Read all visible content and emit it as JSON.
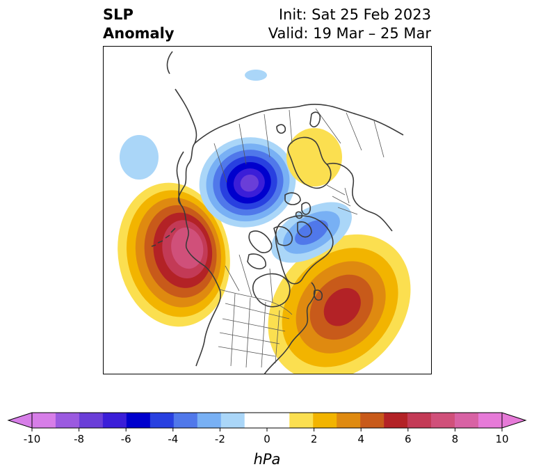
{
  "title": {
    "left_line1": "SLP",
    "left_line2": "Anomaly",
    "init": "Init: Sat 25 Feb 2023",
    "valid": "Valid: 19 Mar – 25 Mar"
  },
  "colorbar": {
    "unit": "hPa",
    "ticks": [
      "-10",
      "-8",
      "-6",
      "-4",
      "-2",
      "0",
      "2",
      "4",
      "6",
      "8",
      "10"
    ],
    "colors": [
      "#d77ee8",
      "#9b5ae0",
      "#6a3ed8",
      "#3b1ed8",
      "#0000cd",
      "#2840e0",
      "#5078ea",
      "#78b0f4",
      "#aad6f8",
      "#ffffff",
      "#fbdf50",
      "#f2b400",
      "#df8a10",
      "#c85a1a",
      "#b32226",
      "#c33a56",
      "#d0507a",
      "#d862a4",
      "#e67ad8"
    ],
    "extend_low_color": "#d77ee8",
    "extend_high_color": "#e67ad8"
  },
  "map": {
    "projection": "north-polar-stereographic",
    "land_color": "#ffffff",
    "coast_color": "#333333",
    "anomalies": [
      {
        "name": "aleutian-high",
        "sign": "positive",
        "peak_hpa": 8
      },
      {
        "name": "arctic-low",
        "sign": "negative",
        "peak_hpa": -7
      },
      {
        "name": "west-atlantic-high",
        "sign": "positive",
        "peak_hpa": 5
      },
      {
        "name": "scandinavian-high",
        "sign": "positive",
        "peak_hpa": 1
      },
      {
        "name": "greenland-low",
        "sign": "negative",
        "peak_hpa": -3
      },
      {
        "name": "siberian-low",
        "sign": "negative",
        "peak_hpa": -1.5
      },
      {
        "name": "north-pacific-low",
        "sign": "negative",
        "peak_hpa": -1.5
      }
    ]
  }
}
